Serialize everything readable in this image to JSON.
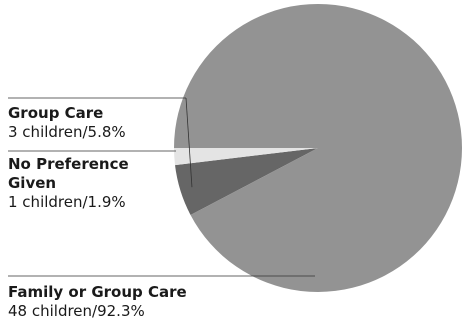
{
  "chart_data": {
    "type": "pie",
    "title": "",
    "slices": [
      {
        "label": "Family or Group Care",
        "count_text": "48 children/92.3%",
        "count": 48,
        "percent": 92.3,
        "color": "#939393"
      },
      {
        "label": "Group Care",
        "count_text": "3 children/5.8%",
        "count": 3,
        "percent": 5.8,
        "color": "#666666"
      },
      {
        "label": "No Preference Given",
        "count_text": "1 children/1.9%",
        "count": 1,
        "percent": 1.9,
        "color": "#e4e4e4"
      }
    ]
  }
}
